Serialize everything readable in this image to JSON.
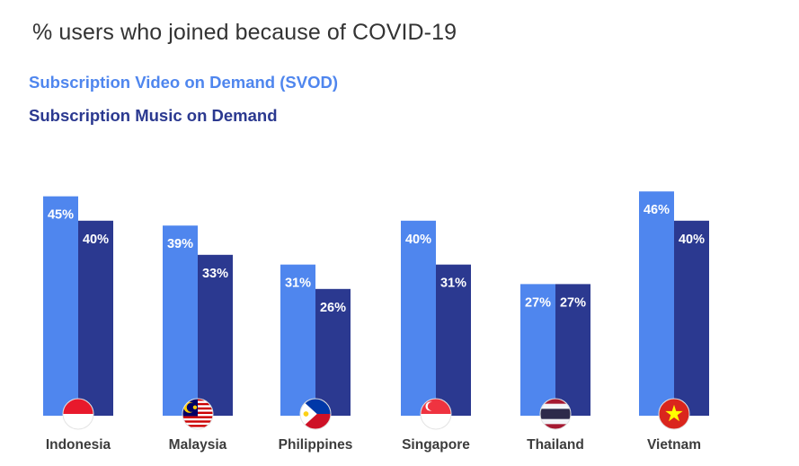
{
  "chart_data": {
    "type": "bar",
    "title": "% users who joined because of COVID-19",
    "categories": [
      "Indonesia",
      "Malaysia",
      "Philippines",
      "Singapore",
      "Thailand",
      "Vietnam"
    ],
    "series": [
      {
        "name": "Subscription Video on Demand (SVOD)",
        "color": "#4f86ee",
        "values": [
          45,
          39,
          31,
          40,
          27,
          46
        ],
        "labels": [
          "45%",
          "39%",
          "31%",
          "40%",
          "27%",
          "46%"
        ]
      },
      {
        "name": "Subscription Music on Demand",
        "color": "#2b3990",
        "values": [
          40,
          33,
          26,
          31,
          27,
          40
        ],
        "labels": [
          "40%",
          "33%",
          "26%",
          "31%",
          "27%",
          "40%"
        ]
      }
    ],
    "flags": [
      "indonesia-flag-icon",
      "malaysia-flag-icon",
      "philippines-flag-icon",
      "singapore-flag-icon",
      "thailand-flag-icon",
      "vietnam-flag-icon"
    ],
    "ylim": [
      0,
      46
    ],
    "grid": false,
    "legend": "top-left",
    "xlabel": "",
    "ylabel": ""
  }
}
